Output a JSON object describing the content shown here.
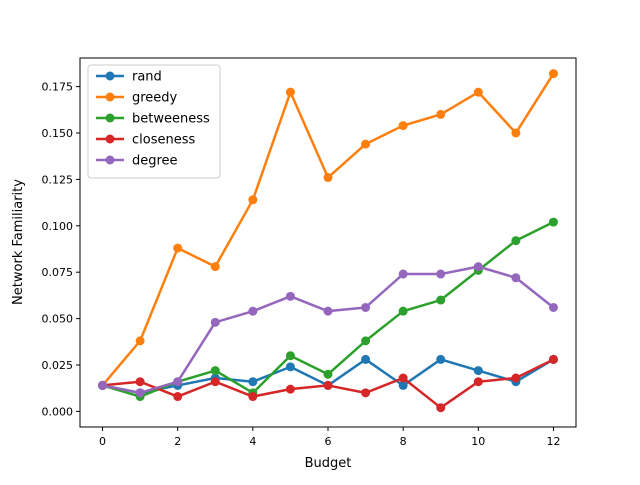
{
  "chart_data": {
    "type": "line",
    "title": "",
    "xlabel": "Budget",
    "ylabel": "Network Familiarity",
    "x": [
      0,
      1,
      2,
      3,
      4,
      5,
      6,
      7,
      8,
      9,
      10,
      11,
      12
    ],
    "xlim": [
      -0.6,
      12.6
    ],
    "ylim": [
      -0.0084,
      0.1904
    ],
    "xticks": [
      0,
      2,
      4,
      6,
      8,
      10,
      12
    ],
    "xtick_labels": [
      "0",
      "2",
      "4",
      "6",
      "8",
      "10",
      "12"
    ],
    "yticks": [
      0.0,
      0.025,
      0.05,
      0.075,
      0.1,
      0.125,
      0.15,
      0.175
    ],
    "ytick_labels": [
      "0.000",
      "0.025",
      "0.050",
      "0.075",
      "0.100",
      "0.125",
      "0.150",
      "0.175"
    ],
    "grid": false,
    "legend_position": "upper-left",
    "series": [
      {
        "name": "rand",
        "color": "#1f77b4",
        "values": [
          0.014,
          0.01,
          0.014,
          0.018,
          0.016,
          0.024,
          0.014,
          0.028,
          0.014,
          0.028,
          0.022,
          0.016,
          0.028
        ]
      },
      {
        "name": "greedy",
        "color": "#ff7f0e",
        "values": [
          0.014,
          0.038,
          0.088,
          0.078,
          0.114,
          0.172,
          0.126,
          0.144,
          0.154,
          0.16,
          0.172,
          0.15,
          0.182
        ]
      },
      {
        "name": "betweeness",
        "color": "#2ca02c",
        "values": [
          0.014,
          0.008,
          0.016,
          0.022,
          0.01,
          0.03,
          0.02,
          0.038,
          0.054,
          0.06,
          0.076,
          0.092,
          0.102
        ]
      },
      {
        "name": "closeness",
        "color": "#d62728",
        "values": [
          0.014,
          0.016,
          0.008,
          0.016,
          0.008,
          0.012,
          0.014,
          0.01,
          0.018,
          0.002,
          0.016,
          0.018,
          0.028
        ]
      },
      {
        "name": "degree",
        "color": "#9467bd",
        "values": [
          0.014,
          0.01,
          0.016,
          0.048,
          0.054,
          0.062,
          0.054,
          0.056,
          0.074,
          0.074,
          0.078,
          0.072,
          0.056
        ]
      }
    ]
  }
}
